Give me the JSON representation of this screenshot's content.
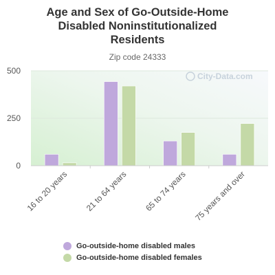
{
  "chart_data": {
    "type": "bar",
    "title_lines": [
      "Age and Sex of Go-Outside-Home",
      "Disabled Noninstitutionalized",
      "Residents"
    ],
    "subtitle": "Zip code 24333",
    "watermark": "City-Data.com",
    "categories": [
      "16 to 20 years",
      "21 to 64 years",
      "65 to 74 years",
      "75 years and over"
    ],
    "series": [
      {
        "name": "Go-outside-home disabled males",
        "color": "#bfa8dc",
        "values": [
          60,
          443,
          130,
          60
        ]
      },
      {
        "name": "Go-outside-home disabled females",
        "color": "#c4d9a7",
        "values": [
          15,
          420,
          175,
          222
        ]
      }
    ],
    "yticks": [
      "0",
      "250",
      "500"
    ],
    "ylim": [
      0,
      500
    ],
    "grid": true,
    "legend_position": "bottom"
  }
}
